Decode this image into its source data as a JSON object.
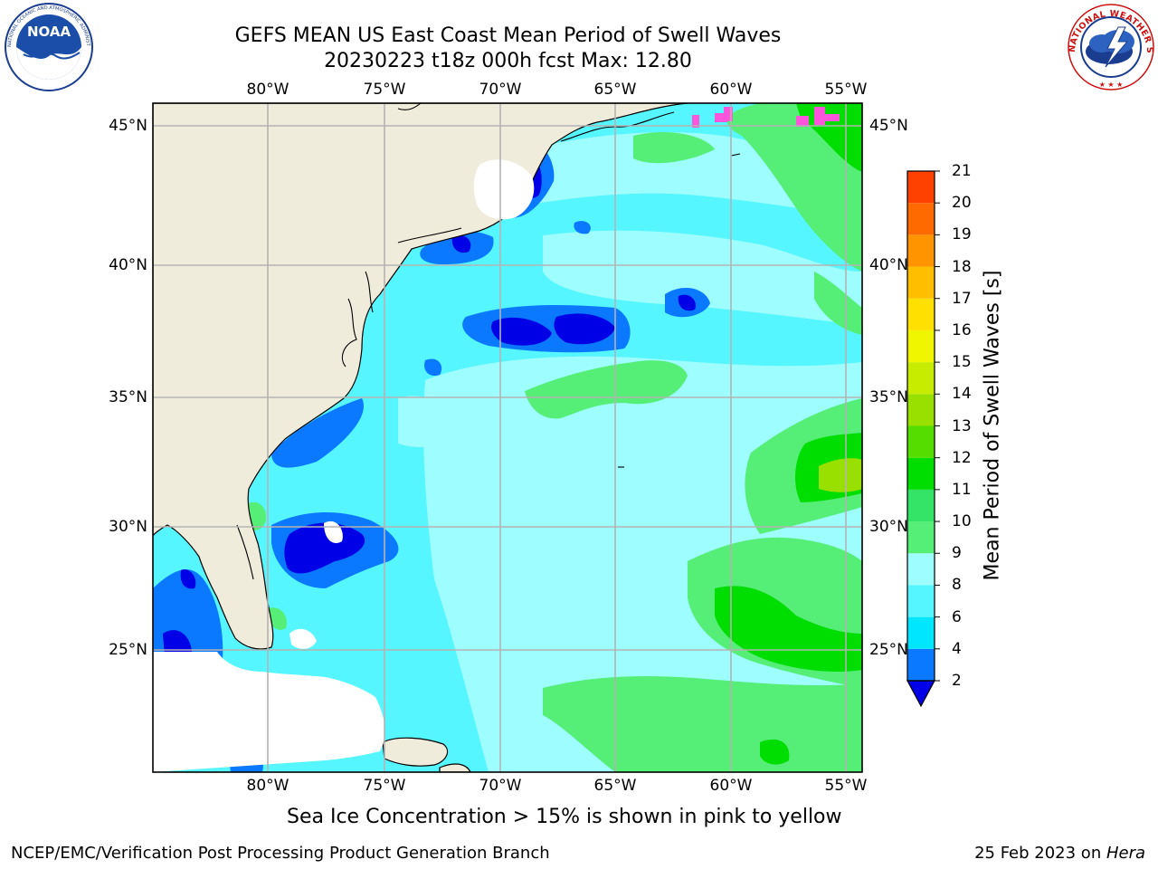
{
  "title": {
    "line1": "GEFS MEAN US East Coast Mean Period of Swell Waves",
    "line2": "20230223 t18z 000h fcst   Max: 12.80"
  },
  "map": {
    "lon_ticks": [
      "80°W",
      "75°W",
      "70°W",
      "65°W",
      "60°W",
      "55°W"
    ],
    "lat_ticks": [
      "45°N",
      "40°N",
      "35°N",
      "30°N",
      "25°N"
    ],
    "extent": {
      "lon_min": -85,
      "lon_max": -54.5,
      "lat_min": 20.5,
      "lat_max": 45.8
    }
  },
  "colorbar": {
    "title": "Mean Period of Swell Waves [s]",
    "levels": [
      "2",
      "4",
      "6",
      "8",
      "9",
      "10",
      "11",
      "12",
      "13",
      "14",
      "15",
      "16",
      "17",
      "18",
      "19",
      "20",
      "21"
    ],
    "colors": [
      "#0000e6",
      "#0a78ff",
      "#00e6ff",
      "#55f6ff",
      "#9dfdff",
      "#55ee77",
      "#33e466",
      "#00dd00",
      "#55dd00",
      "#99e000",
      "#c8ec00",
      "#f0f500",
      "#ffe000",
      "#ffbe00",
      "#ff9400",
      "#ff6a00",
      "#ff4100",
      "#ff0000"
    ]
  },
  "legend_colors": {
    "land": "#efecdc",
    "ocean_base": "#55f6ff",
    "grid": "#b3b3b3",
    "sea_ice": "#ff55dd"
  },
  "logos": {
    "noaa_text": "NOAA",
    "noaa_ring": "NATIONAL OCEANIC AND ATMOSPHERIC ADMINISTRATION · U.S. DEPARTMENT OF COMMERCE",
    "nws_ring": "NATIONAL WEATHER SERVICE"
  },
  "notes": {
    "ice": "Sea Ice Concentration > 15% is shown in pink to yellow"
  },
  "footer": {
    "left": "NCEP/EMC/Verification Post Processing Product Generation Branch",
    "right_date": "25 Feb 2023 on ",
    "right_host": "Hera"
  }
}
